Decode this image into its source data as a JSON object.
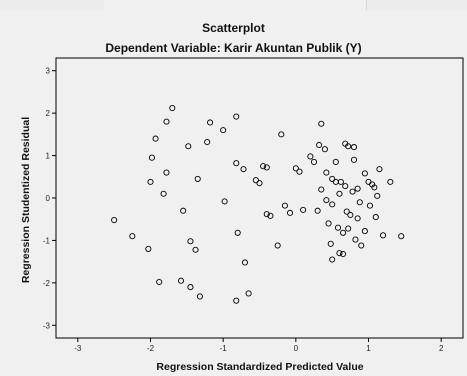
{
  "chart_data": {
    "type": "scatter",
    "title": "Scatterplot",
    "subtitle": "Dependent Variable: Karir Akuntan Publik (Y)",
    "xlabel": "Regression Standardized Predicted Value",
    "ylabel": "Regression Studentized Residual",
    "xlim": [
      -3.3,
      2.3
    ],
    "ylim": [
      -3.3,
      3.3
    ],
    "x_ticks": [
      -3,
      -2,
      -1,
      0,
      1,
      2
    ],
    "y_ticks": [
      3,
      2,
      1,
      0,
      -1,
      -2,
      -3
    ],
    "grid": false,
    "marker": "hollow-circle",
    "colors": {
      "background": "#f0f0f0",
      "plot_area": "#f0f0f0",
      "axis": "#000000",
      "marker": "#000000"
    },
    "points": [
      {
        "x": -2.5,
        "y": -0.52
      },
      {
        "x": -2.25,
        "y": -0.9
      },
      {
        "x": -2.03,
        "y": -1.2
      },
      {
        "x": -1.98,
        "y": 0.95
      },
      {
        "x": -2.0,
        "y": 0.38
      },
      {
        "x": -1.93,
        "y": 1.4
      },
      {
        "x": -1.88,
        "y": -1.98
      },
      {
        "x": -1.82,
        "y": 0.1
      },
      {
        "x": -1.78,
        "y": 0.6
      },
      {
        "x": -1.78,
        "y": 1.8
      },
      {
        "x": -1.7,
        "y": 2.12
      },
      {
        "x": -1.58,
        "y": -1.95
      },
      {
        "x": -1.55,
        "y": -0.3
      },
      {
        "x": -1.48,
        "y": 1.22
      },
      {
        "x": -1.45,
        "y": -1.02
      },
      {
        "x": -1.45,
        "y": -2.1
      },
      {
        "x": -1.38,
        "y": -1.22
      },
      {
        "x": -1.35,
        "y": 0.45
      },
      {
        "x": -1.32,
        "y": -2.32
      },
      {
        "x": -1.22,
        "y": 1.32
      },
      {
        "x": -1.18,
        "y": 1.78
      },
      {
        "x": -1.0,
        "y": 1.6
      },
      {
        "x": -0.98,
        "y": -0.08
      },
      {
        "x": -0.82,
        "y": 1.92
      },
      {
        "x": -0.82,
        "y": 0.82
      },
      {
        "x": -0.82,
        "y": -2.42
      },
      {
        "x": -0.8,
        "y": -0.82
      },
      {
        "x": -0.72,
        "y": 0.68
      },
      {
        "x": -0.7,
        "y": -1.52
      },
      {
        "x": -0.65,
        "y": -2.25
      },
      {
        "x": -0.55,
        "y": 0.42
      },
      {
        "x": -0.5,
        "y": 0.35
      },
      {
        "x": -0.45,
        "y": 0.75
      },
      {
        "x": -0.4,
        "y": 0.72
      },
      {
        "x": -0.4,
        "y": -0.38
      },
      {
        "x": -0.35,
        "y": -0.42
      },
      {
        "x": -0.25,
        "y": -1.12
      },
      {
        "x": -0.2,
        "y": 1.5
      },
      {
        "x": -0.15,
        "y": -0.18
      },
      {
        "x": -0.08,
        "y": -0.35
      },
      {
        "x": 0.0,
        "y": 0.7
      },
      {
        "x": 0.05,
        "y": 0.62
      },
      {
        "x": 0.1,
        "y": -0.28
      },
      {
        "x": 0.2,
        "y": 0.98
      },
      {
        "x": 0.25,
        "y": 0.85
      },
      {
        "x": 0.3,
        "y": -0.3
      },
      {
        "x": 0.32,
        "y": 1.25
      },
      {
        "x": 0.35,
        "y": 0.2
      },
      {
        "x": 0.35,
        "y": 1.75
      },
      {
        "x": 0.4,
        "y": 1.15
      },
      {
        "x": 0.42,
        "y": 0.6
      },
      {
        "x": 0.42,
        "y": -0.05
      },
      {
        "x": 0.45,
        "y": -0.6
      },
      {
        "x": 0.48,
        "y": -1.08
      },
      {
        "x": 0.5,
        "y": 0.45
      },
      {
        "x": 0.5,
        "y": -0.15
      },
      {
        "x": 0.5,
        "y": -1.45
      },
      {
        "x": 0.55,
        "y": 0.85
      },
      {
        "x": 0.55,
        "y": 0.38
      },
      {
        "x": 0.58,
        "y": -0.7
      },
      {
        "x": 0.6,
        "y": 0.1
      },
      {
        "x": 0.6,
        "y": -1.3
      },
      {
        "x": 0.62,
        "y": 0.38
      },
      {
        "x": 0.65,
        "y": -0.82
      },
      {
        "x": 0.65,
        "y": -1.32
      },
      {
        "x": 0.68,
        "y": 1.28
      },
      {
        "x": 0.68,
        "y": 0.28
      },
      {
        "x": 0.7,
        "y": -0.32
      },
      {
        "x": 0.72,
        "y": -0.72
      },
      {
        "x": 0.72,
        "y": 1.22
      },
      {
        "x": 0.75,
        "y": -0.4
      },
      {
        "x": 0.78,
        "y": 0.15
      },
      {
        "x": 0.8,
        "y": 0.9
      },
      {
        "x": 0.8,
        "y": 1.2
      },
      {
        "x": 0.82,
        "y": -0.98
      },
      {
        "x": 0.85,
        "y": -0.48
      },
      {
        "x": 0.85,
        "y": 0.22
      },
      {
        "x": 0.88,
        "y": -0.1
      },
      {
        "x": 0.9,
        "y": -1.12
      },
      {
        "x": 0.95,
        "y": -0.78
      },
      {
        "x": 0.95,
        "y": 0.58
      },
      {
        "x": 1.0,
        "y": 0.38
      },
      {
        "x": 1.02,
        "y": -0.18
      },
      {
        "x": 1.05,
        "y": 0.32
      },
      {
        "x": 1.08,
        "y": 0.25
      },
      {
        "x": 1.1,
        "y": -0.45
      },
      {
        "x": 1.12,
        "y": 0.05
      },
      {
        "x": 1.15,
        "y": 0.68
      },
      {
        "x": 1.2,
        "y": -0.88
      },
      {
        "x": 1.3,
        "y": 0.38
      },
      {
        "x": 1.45,
        "y": -0.9
      }
    ]
  }
}
